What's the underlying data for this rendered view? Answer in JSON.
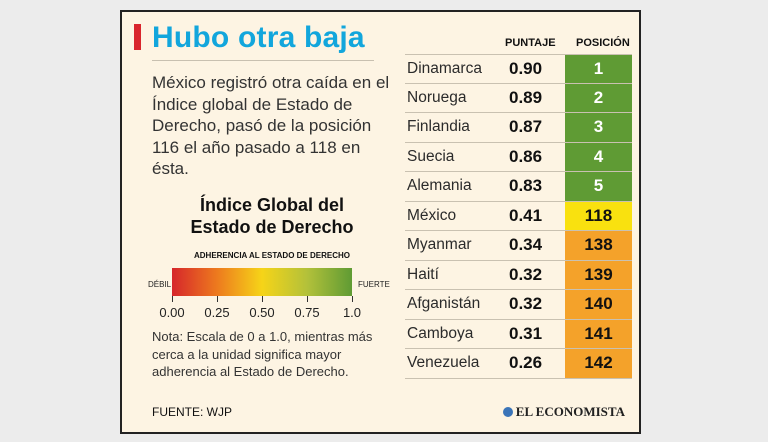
{
  "title": "Hubo otra baja",
  "intro": "México registró otra caída en el Índice global de Estado de Derecho, pasó de la posición 116 el año pasado a 118 en ésta.",
  "index_title_line1": "Índice Global del",
  "index_title_line2": "Estado de Derecho",
  "scale_label": "ADHERENCIA AL ESTADO DE DERECHO",
  "weak_label": "DÉBIL",
  "strong_label": "FUERTE",
  "scale_ticks": [
    "0.00",
    "0.25",
    "0.50",
    "0.75",
    "1.0"
  ],
  "note": "Nota: Escala de 0 a 1.0, mientras más cerca a la unidad significa mayor adherencia al Estado de Derecho.",
  "source": "FUENTE: WJP",
  "brand": "EL ECONOMISTA",
  "colors": {
    "title": "#12a6dc",
    "accent": "#d9252c",
    "position_top": "#5f9b34",
    "position_mexico": "#f9e10f",
    "position_bottom": "#f4a22a",
    "position_text_light": "#ffffff",
    "position_text_dark": "#111111"
  },
  "chart_data": {
    "type": "table",
    "columns": [
      "",
      "PUNTAJE",
      "POSICIÓN"
    ],
    "rows": [
      {
        "country": "Dinamarca",
        "score": "0.90",
        "position": "1",
        "group": "top"
      },
      {
        "country": "Noruega",
        "score": "0.89",
        "position": "2",
        "group": "top"
      },
      {
        "country": "Finlandia",
        "score": "0.87",
        "position": "3",
        "group": "top"
      },
      {
        "country": "Suecia",
        "score": "0.86",
        "position": "4",
        "group": "top"
      },
      {
        "country": "Alemania",
        "score": "0.83",
        "position": "5",
        "group": "top"
      },
      {
        "country": "México",
        "score": "0.41",
        "position": "118",
        "group": "mexico"
      },
      {
        "country": "Myanmar",
        "score": "0.34",
        "position": "138",
        "group": "bottom"
      },
      {
        "country": "Haití",
        "score": "0.32",
        "position": "139",
        "group": "bottom"
      },
      {
        "country": "Afganistán",
        "score": "0.32",
        "position": "140",
        "group": "bottom"
      },
      {
        "country": "Camboya",
        "score": "0.31",
        "position": "141",
        "group": "bottom"
      },
      {
        "country": "Venezuela",
        "score": "0.26",
        "position": "142",
        "group": "bottom"
      }
    ]
  }
}
